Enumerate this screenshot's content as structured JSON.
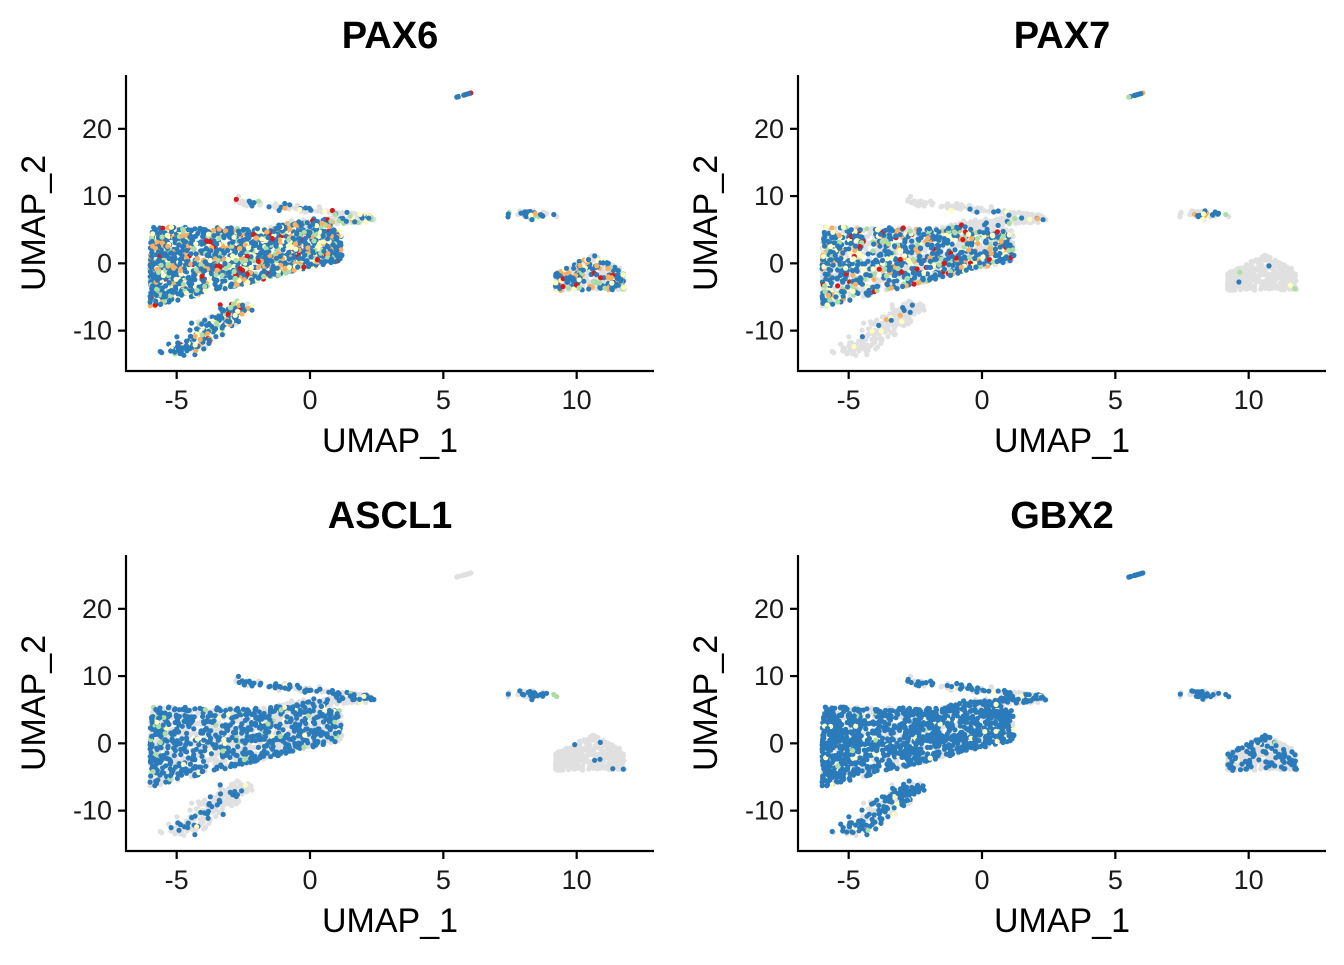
{
  "chart_data": [
    {
      "type": "scatter",
      "title": "PAX6",
      "xlabel": "UMAP_1",
      "ylabel": "UMAP_2",
      "xlim": [
        -6.9,
        12.9
      ],
      "ylim": [
        -16,
        28
      ],
      "xticks": [
        -5,
        0,
        5,
        10
      ],
      "yticks": [
        -10,
        0,
        10,
        20
      ],
      "color_level_pct": {
        "grey": 36,
        "blue": 44,
        "light_green": 7,
        "pale_yellow": 6,
        "orange": 5,
        "red": 2
      }
    },
    {
      "type": "scatter",
      "title": "PAX7",
      "xlabel": "UMAP_1",
      "ylabel": "UMAP_2",
      "xlim": [
        -6.9,
        12.9
      ],
      "ylim": [
        -16,
        28
      ],
      "xticks": [
        -5,
        0,
        5,
        10
      ],
      "yticks": [
        -10,
        0,
        10,
        20
      ],
      "color_level_pct": {
        "grey": 74,
        "blue": 8,
        "light_green": 7,
        "pale_yellow": 7,
        "orange": 3,
        "red": 1
      }
    },
    {
      "type": "scatter",
      "title": "ASCL1",
      "xlabel": "UMAP_1",
      "ylabel": "UMAP_2",
      "xlim": [
        -6.9,
        12.9
      ],
      "ylim": [
        -16,
        28
      ],
      "xticks": [
        -5,
        0,
        5,
        10
      ],
      "yticks": [
        -10,
        0,
        10,
        20
      ],
      "color_level_pct": {
        "grey": 60,
        "blue": 30,
        "light_green": 6,
        "pale_yellow": 4,
        "orange": 0,
        "red": 0
      }
    },
    {
      "type": "scatter",
      "title": "GBX2",
      "xlabel": "UMAP_1",
      "ylabel": "UMAP_2",
      "xlim": [
        -6.9,
        12.9
      ],
      "ylim": [
        -16,
        28
      ],
      "xticks": [
        -5,
        0,
        5,
        10
      ],
      "yticks": [
        -10,
        0,
        10,
        20
      ],
      "color_level_pct": {
        "grey": 44,
        "blue": 52,
        "light_green": 3,
        "pale_yellow": 0,
        "orange": 0,
        "red": 1
      }
    }
  ],
  "colors": {
    "grey": "#e0e0e0",
    "blue": "#2b7bba",
    "light_green": "#abdda4",
    "pale_yellow": "#ffffbf",
    "orange": "#fdae61",
    "red": "#d7191c"
  }
}
